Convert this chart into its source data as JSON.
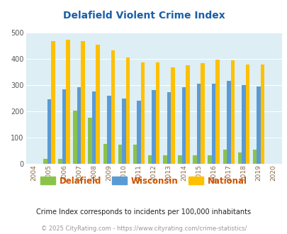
{
  "title": "Delafield Violent Crime Index",
  "years": [
    2004,
    2005,
    2006,
    2007,
    2008,
    2009,
    2010,
    2011,
    2012,
    2013,
    2014,
    2015,
    2016,
    2017,
    2018,
    2019,
    2020
  ],
  "delafield": [
    0,
    20,
    20,
    202,
    175,
    75,
    73,
    72,
    33,
    33,
    33,
    33,
    33,
    55,
    42,
    55,
    0
  ],
  "wisconsin": [
    0,
    245,
    285,
    292,
    275,
    260,
    250,
    240,
    281,
    272,
    292,
    306,
    306,
    317,
    299,
    294,
    0
  ],
  "national": [
    0,
    469,
    473,
    467,
    455,
    432,
    405,
    388,
    387,
    367,
    377,
    383,
    397,
    394,
    380,
    379,
    0
  ],
  "color_delafield": "#8bc34a",
  "color_wisconsin": "#5b9bd5",
  "color_national": "#ffc000",
  "bg_color": "#ddeef5",
  "ylim": [
    0,
    500
  ],
  "yticks": [
    0,
    100,
    200,
    300,
    400,
    500
  ],
  "subtitle": "Crime Index corresponds to incidents per 100,000 inhabitants",
  "footer": "© 2025 CityRating.com - https://www.cityrating.com/crime-statistics/",
  "legend_labels": [
    "Delafield",
    "Wisconsin",
    "National"
  ]
}
